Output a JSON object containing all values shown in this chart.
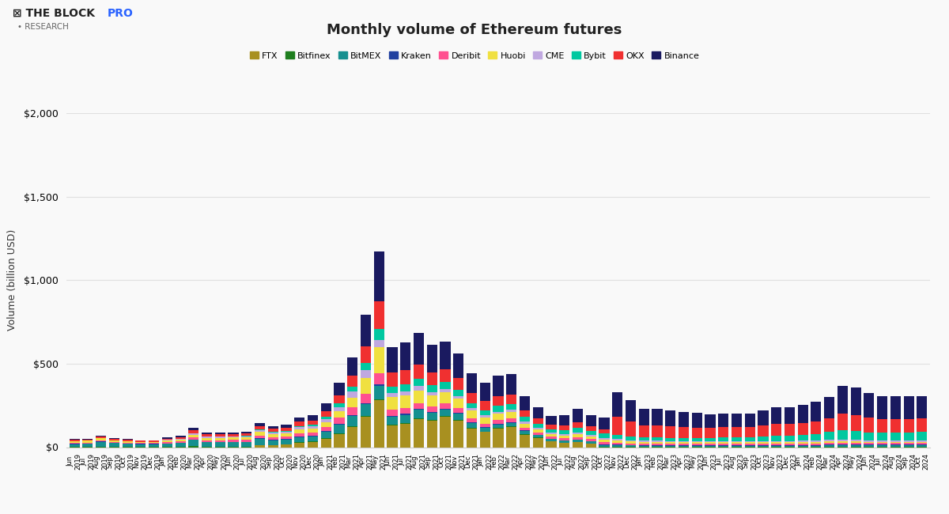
{
  "title": "Monthly volume of Ethereum futures",
  "ylabel": "Volume (billion USD)",
  "bg_color": "#f9f9f9",
  "grid_color": "#e0e0e0",
  "exchanges": [
    "FTX",
    "Bitfinex",
    "BitMEX",
    "Kraken",
    "Deribit",
    "Huobi",
    "CME",
    "Bybit",
    "OKX",
    "Binance"
  ],
  "colors": [
    "#a89020",
    "#1e7e1e",
    "#159090",
    "#2040a0",
    "#ff5090",
    "#f0e040",
    "#c0a8e0",
    "#00c8a0",
    "#f03030",
    "#1a1a60"
  ],
  "months": [
    "Jun\n2019",
    "Jul\n2019",
    "Aug\n2019",
    "Sep\n2019",
    "Oct\n2019",
    "Nov\n2019",
    "Dec\n2019",
    "Jan\n2020",
    "Feb\n2020",
    "Mar\n2020",
    "Apr\n2020",
    "May\n2020",
    "Jun\n2020",
    "Jul\n2020",
    "Aug\n2020",
    "Sep\n2020",
    "Oct\n2020",
    "Nov\n2020",
    "Dec\n2020",
    "Jan\n2021",
    "Feb\n2021",
    "Mar\n2021",
    "Apr\n2021",
    "May\n2021",
    "Jun\n2021",
    "Jul\n2021",
    "Aug\n2021",
    "Sep\n2021",
    "Oct\n2021",
    "Nov\n2021",
    "Dec\n2021",
    "Jan\n2022",
    "Feb\n2022",
    "Mar\n2022",
    "Apr\n2022",
    "May\n2022",
    "Jun\n2022",
    "Jul\n2022",
    "Aug\n2022",
    "Sep\n2022",
    "Oct\n2022",
    "Nov\n2022",
    "Dec\n2022",
    "Jan\n2023",
    "Feb\n2023",
    "Mar\n2023",
    "Apr\n2023",
    "May\n2023",
    "Jun\n2023",
    "Jul\n2023",
    "Aug\n2023",
    "Sep\n2023",
    "Oct\n2023",
    "Nov\n2023",
    "Dec\n2023",
    "Jan\n2024",
    "Feb\n2024",
    "Mar\n2024",
    "Apr\n2024",
    "May\n2024",
    "Jun\n2024",
    "Jul\n2024",
    "Aug\n2024",
    "Sep\n2024",
    "Oct\n2024"
  ],
  "data": {
    "FTX": [
      0,
      0,
      0,
      0,
      0,
      0,
      0,
      0,
      0,
      0,
      0,
      0,
      0,
      0,
      10,
      10,
      15,
      25,
      30,
      50,
      80,
      120,
      180,
      280,
      130,
      140,
      170,
      160,
      180,
      160,
      110,
      90,
      110,
      120,
      75,
      55,
      35,
      25,
      30,
      20,
      0,
      0,
      0,
      0,
      0,
      0,
      0,
      0,
      0,
      0,
      0,
      0,
      0,
      0,
      0,
      0,
      0,
      0,
      0,
      0,
      0,
      0,
      0,
      0,
      0
    ],
    "Bitfinex": [
      3,
      3,
      4,
      3,
      3,
      3,
      3,
      3,
      3,
      5,
      3,
      3,
      3,
      3,
      3,
      3,
      3,
      4,
      4,
      4,
      5,
      6,
      7,
      8,
      5,
      5,
      5,
      5,
      5,
      5,
      5,
      4,
      4,
      4,
      3,
      3,
      2,
      2,
      2,
      2,
      2,
      2,
      2,
      2,
      2,
      2,
      2,
      2,
      2,
      2,
      2,
      2,
      2,
      2,
      2,
      2,
      2,
      3,
      3,
      3,
      3,
      3,
      3,
      3,
      3
    ],
    "BitMEX": [
      15,
      18,
      28,
      22,
      18,
      14,
      14,
      18,
      22,
      38,
      28,
      28,
      28,
      28,
      38,
      28,
      28,
      32,
      32,
      38,
      50,
      60,
      70,
      80,
      48,
      48,
      48,
      40,
      40,
      35,
      28,
      22,
      22,
      22,
      18,
      14,
      12,
      12,
      12,
      12,
      12,
      10,
      8,
      7,
      7,
      7,
      7,
      7,
      7,
      7,
      7,
      7,
      7,
      7,
      7,
      7,
      7,
      8,
      8,
      8,
      8,
      8,
      8,
      8,
      8
    ],
    "Kraken": [
      2,
      2,
      2,
      2,
      2,
      2,
      2,
      2,
      2,
      4,
      2,
      2,
      2,
      2,
      4,
      4,
      4,
      4,
      4,
      5,
      6,
      7,
      8,
      9,
      6,
      6,
      6,
      6,
      6,
      6,
      6,
      5,
      5,
      5,
      4,
      3,
      3,
      3,
      3,
      3,
      3,
      3,
      3,
      3,
      3,
      3,
      3,
      3,
      3,
      3,
      3,
      3,
      3,
      3,
      3,
      3,
      3,
      4,
      4,
      4,
      4,
      4,
      4,
      4,
      4
    ],
    "Deribit": [
      5,
      5,
      7,
      5,
      5,
      5,
      5,
      7,
      7,
      10,
      8,
      8,
      10,
      10,
      14,
      14,
      14,
      18,
      18,
      26,
      36,
      45,
      55,
      65,
      36,
      36,
      36,
      32,
      32,
      28,
      24,
      20,
      20,
      20,
      16,
      12,
      12,
      12,
      12,
      12,
      12,
      12,
      10,
      9,
      9,
      9,
      9,
      9,
      9,
      9,
      9,
      9,
      9,
      9,
      9,
      10,
      10,
      11,
      11,
      11,
      10,
      10,
      10,
      10,
      10
    ],
    "Huobi": [
      10,
      10,
      14,
      10,
      9,
      7,
      7,
      9,
      11,
      18,
      14,
      14,
      14,
      14,
      22,
      18,
      18,
      22,
      22,
      28,
      38,
      58,
      95,
      155,
      75,
      75,
      75,
      65,
      65,
      55,
      45,
      35,
      38,
      38,
      26,
      20,
      16,
      16,
      20,
      16,
      16,
      14,
      12,
      10,
      10,
      8,
      8,
      8,
      8,
      8,
      8,
      8,
      8,
      8,
      8,
      8,
      8,
      8,
      8,
      8,
      7,
      7,
      7,
      7,
      7
    ],
    "CME": [
      0,
      0,
      0,
      0,
      0,
      0,
      0,
      4,
      5,
      9,
      7,
      7,
      7,
      8,
      10,
      10,
      10,
      14,
      14,
      18,
      26,
      36,
      45,
      45,
      26,
      26,
      26,
      22,
      22,
      18,
      14,
      14,
      14,
      14,
      10,
      8,
      8,
      8,
      10,
      10,
      10,
      8,
      7,
      7,
      7,
      7,
      7,
      7,
      7,
      7,
      7,
      7,
      7,
      7,
      7,
      8,
      10,
      12,
      12,
      10,
      9,
      9,
      9,
      9,
      9
    ],
    "Bybit": [
      0,
      0,
      0,
      0,
      0,
      0,
      0,
      0,
      0,
      0,
      0,
      0,
      0,
      2,
      4,
      4,
      5,
      7,
      9,
      14,
      22,
      32,
      45,
      65,
      36,
      40,
      45,
      40,
      40,
      36,
      32,
      32,
      36,
      36,
      28,
      24,
      20,
      24,
      28,
      24,
      26,
      24,
      20,
      20,
      20,
      20,
      20,
      20,
      20,
      24,
      24,
      24,
      28,
      32,
      32,
      36,
      40,
      45,
      55,
      52,
      48,
      48,
      48,
      48,
      50
    ],
    "OKX": [
      9,
      9,
      11,
      9,
      7,
      7,
      7,
      9,
      11,
      18,
      14,
      14,
      14,
      14,
      22,
      18,
      18,
      26,
      26,
      32,
      45,
      65,
      100,
      165,
      85,
      85,
      85,
      75,
      75,
      70,
      58,
      55,
      58,
      58,
      40,
      32,
      26,
      26,
      32,
      26,
      26,
      110,
      90,
      72,
      72,
      68,
      65,
      62,
      60,
      60,
      60,
      60,
      65,
      70,
      70,
      72,
      76,
      82,
      100,
      95,
      88,
      80,
      80,
      80,
      80
    ],
    "Binance": [
      4,
      4,
      5,
      4,
      4,
      4,
      4,
      5,
      7,
      14,
      10,
      10,
      10,
      10,
      18,
      18,
      18,
      26,
      32,
      48,
      78,
      110,
      190,
      300,
      150,
      168,
      188,
      168,
      168,
      150,
      120,
      110,
      120,
      120,
      85,
      70,
      55,
      65,
      82,
      68,
      72,
      145,
      128,
      100,
      100,
      95,
      90,
      86,
      82,
      82,
      82,
      82,
      90,
      100,
      100,
      108,
      118,
      128,
      168,
      165,
      146,
      135,
      135,
      135,
      135
    ]
  }
}
